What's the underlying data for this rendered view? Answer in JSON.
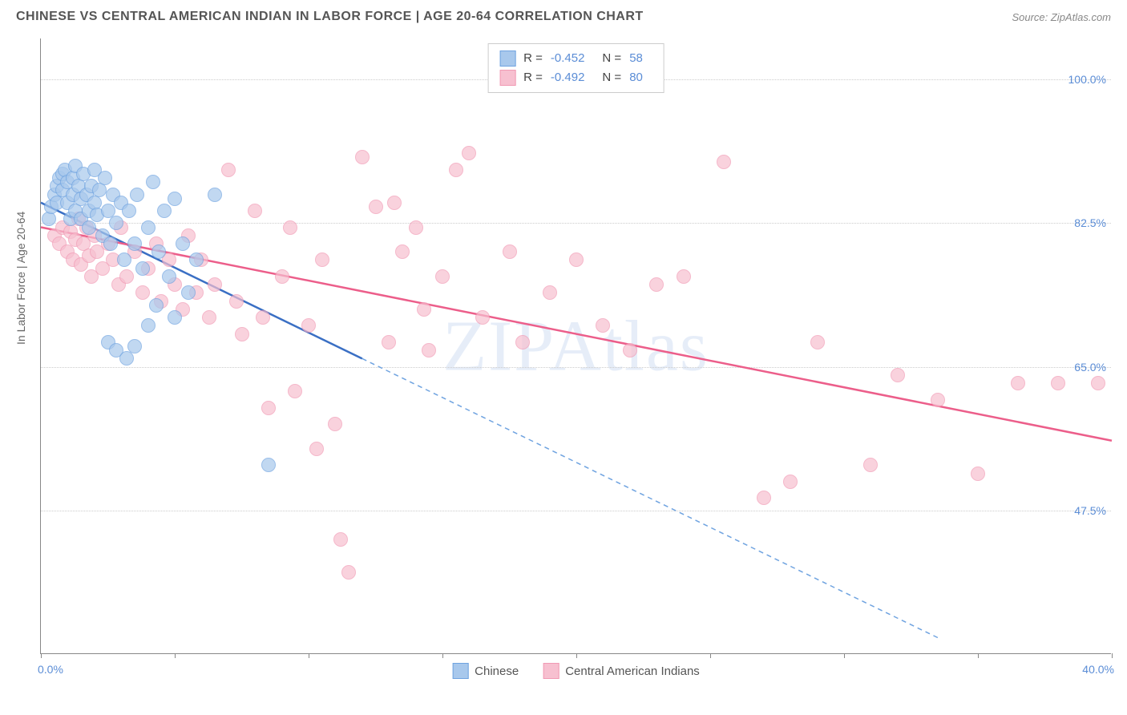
{
  "title": "CHINESE VS CENTRAL AMERICAN INDIAN IN LABOR FORCE | AGE 20-64 CORRELATION CHART",
  "source": "Source: ZipAtlas.com",
  "watermark": "ZIPAtlas",
  "ylabel": "In Labor Force | Age 20-64",
  "chart": {
    "type": "scatter",
    "xlim": [
      0,
      40
    ],
    "ylim": [
      30,
      105
    ],
    "xtick_positions": [
      0,
      5,
      10,
      15,
      20,
      25,
      30,
      35,
      40
    ],
    "ytick_positions": [
      47.5,
      65.0,
      82.5,
      100.0
    ],
    "ytick_labels": [
      "47.5%",
      "65.0%",
      "82.5%",
      "100.0%"
    ],
    "xlim_labels": {
      "min": "0.0%",
      "max": "40.0%"
    },
    "background_color": "#ffffff",
    "grid_color": "#cccccc",
    "axis_color": "#888888",
    "tick_label_color": "#5b8dd6",
    "marker_radius": 9,
    "marker_stroke_width": 1.5,
    "marker_fill_opacity": 0.35,
    "title_fontsize": 16,
    "label_fontsize": 14
  },
  "series": [
    {
      "name": "Chinese",
      "color_stroke": "#6fa3e0",
      "color_fill": "#a8c8ec",
      "R": "-0.452",
      "N": "58",
      "regression": {
        "x1": 0,
        "y1": 85,
        "x2": 12,
        "y2": 66,
        "x2_ext": 33.5,
        "y2_ext": 32
      },
      "points": [
        [
          0.3,
          83
        ],
        [
          0.4,
          84.5
        ],
        [
          0.5,
          86
        ],
        [
          0.6,
          87
        ],
        [
          0.6,
          85
        ],
        [
          0.7,
          88
        ],
        [
          0.8,
          86.5
        ],
        [
          0.8,
          88.5
        ],
        [
          0.9,
          89
        ],
        [
          1.0,
          87.5
        ],
        [
          1.0,
          85
        ],
        [
          1.1,
          83
        ],
        [
          1.2,
          88
        ],
        [
          1.2,
          86
        ],
        [
          1.3,
          84
        ],
        [
          1.3,
          89.5
        ],
        [
          1.4,
          87
        ],
        [
          1.5,
          85.5
        ],
        [
          1.5,
          83
        ],
        [
          1.6,
          88.5
        ],
        [
          1.7,
          86
        ],
        [
          1.8,
          84
        ],
        [
          1.8,
          82
        ],
        [
          1.9,
          87
        ],
        [
          2.0,
          85
        ],
        [
          2.0,
          89
        ],
        [
          2.1,
          83.5
        ],
        [
          2.2,
          86.5
        ],
        [
          2.3,
          81
        ],
        [
          2.4,
          88
        ],
        [
          2.5,
          84
        ],
        [
          2.6,
          80
        ],
        [
          2.7,
          86
        ],
        [
          2.8,
          82.5
        ],
        [
          3.0,
          85
        ],
        [
          3.1,
          78
        ],
        [
          3.3,
          84
        ],
        [
          3.5,
          80
        ],
        [
          3.6,
          86
        ],
        [
          3.8,
          77
        ],
        [
          4.0,
          82
        ],
        [
          4.2,
          87.5
        ],
        [
          4.4,
          79
        ],
        [
          4.6,
          84
        ],
        [
          4.8,
          76
        ],
        [
          5.0,
          85.5
        ],
        [
          5.3,
          80
        ],
        [
          5.5,
          74
        ],
        [
          5.8,
          78
        ],
        [
          2.5,
          68
        ],
        [
          2.8,
          67
        ],
        [
          3.2,
          66
        ],
        [
          3.5,
          67.5
        ],
        [
          4.0,
          70
        ],
        [
          4.3,
          72.5
        ],
        [
          5.0,
          71
        ],
        [
          6.5,
          86
        ],
        [
          8.5,
          53
        ]
      ]
    },
    {
      "name": "Central American Indians",
      "color_stroke": "#f19ab4",
      "color_fill": "#f7c0d0",
      "R": "-0.492",
      "N": "80",
      "regression": {
        "x1": 0,
        "y1": 82,
        "x2": 40,
        "y2": 56
      },
      "points": [
        [
          0.5,
          81
        ],
        [
          0.7,
          80
        ],
        [
          0.8,
          82
        ],
        [
          1.0,
          79
        ],
        [
          1.1,
          81.5
        ],
        [
          1.2,
          78
        ],
        [
          1.3,
          80.5
        ],
        [
          1.4,
          83
        ],
        [
          1.5,
          77.5
        ],
        [
          1.6,
          80
        ],
        [
          1.7,
          82
        ],
        [
          1.8,
          78.5
        ],
        [
          1.9,
          76
        ],
        [
          2.0,
          81
        ],
        [
          2.1,
          79
        ],
        [
          2.3,
          77
        ],
        [
          2.5,
          80
        ],
        [
          2.7,
          78
        ],
        [
          2.9,
          75
        ],
        [
          3.0,
          82
        ],
        [
          3.2,
          76
        ],
        [
          3.5,
          79
        ],
        [
          3.8,
          74
        ],
        [
          4.0,
          77
        ],
        [
          4.3,
          80
        ],
        [
          4.5,
          73
        ],
        [
          4.8,
          78
        ],
        [
          5.0,
          75
        ],
        [
          5.3,
          72
        ],
        [
          5.5,
          81
        ],
        [
          5.8,
          74
        ],
        [
          6.0,
          78
        ],
        [
          6.3,
          71
        ],
        [
          6.5,
          75
        ],
        [
          7.0,
          89
        ],
        [
          7.3,
          73
        ],
        [
          7.5,
          69
        ],
        [
          8.0,
          84
        ],
        [
          8.3,
          71
        ],
        [
          8.5,
          60
        ],
        [
          9.0,
          76
        ],
        [
          9.3,
          82
        ],
        [
          9.5,
          62
        ],
        [
          10.0,
          70
        ],
        [
          10.3,
          55
        ],
        [
          10.5,
          78
        ],
        [
          11.0,
          58
        ],
        [
          11.2,
          44
        ],
        [
          11.5,
          40
        ],
        [
          12.0,
          90.5
        ],
        [
          12.5,
          84.5
        ],
        [
          13.0,
          68
        ],
        [
          13.2,
          85
        ],
        [
          13.5,
          79
        ],
        [
          14.0,
          82
        ],
        [
          14.3,
          72
        ],
        [
          14.5,
          67
        ],
        [
          15.0,
          76
        ],
        [
          15.5,
          89
        ],
        [
          16.0,
          91
        ],
        [
          16.5,
          71
        ],
        [
          17.5,
          79
        ],
        [
          18.0,
          68
        ],
        [
          19.0,
          74
        ],
        [
          20.0,
          78
        ],
        [
          21.0,
          70
        ],
        [
          22.0,
          67
        ],
        [
          23.0,
          75
        ],
        [
          24.0,
          76
        ],
        [
          25.5,
          90
        ],
        [
          27.0,
          49
        ],
        [
          28.0,
          51
        ],
        [
          29.0,
          68
        ],
        [
          31.0,
          53
        ],
        [
          32.0,
          64
        ],
        [
          33.5,
          61
        ],
        [
          35.0,
          52
        ],
        [
          36.5,
          63
        ],
        [
          38.0,
          63
        ],
        [
          39.5,
          63
        ]
      ]
    }
  ],
  "legend_bottom": [
    {
      "label": "Chinese",
      "stroke": "#6fa3e0",
      "fill": "#a8c8ec"
    },
    {
      "label": "Central American Indians",
      "stroke": "#f19ab4",
      "fill": "#f7c0d0"
    }
  ]
}
